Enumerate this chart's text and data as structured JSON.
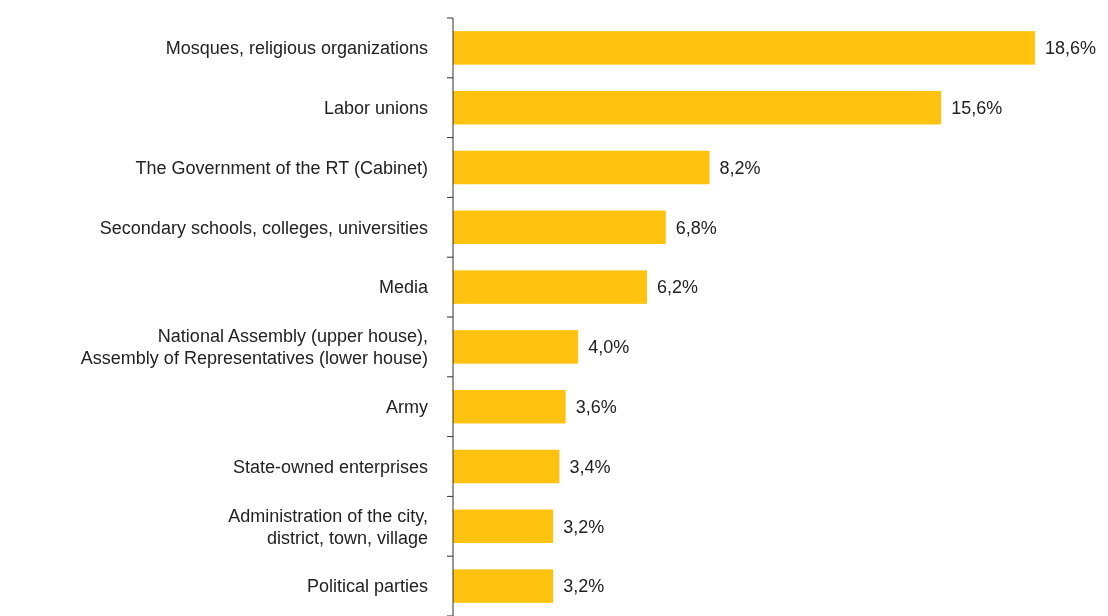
{
  "chart_data": {
    "type": "bar",
    "orientation": "horizontal",
    "categories": [
      "Mosques, religious organizations",
      "Labor unions",
      "The Government of the RT (Cabinet)",
      "Secondary schools, colleges, universities",
      "Media",
      "National Assembly (upper house),\nAssembly of Representatives (lower house)",
      "Army",
      "State-owned enterprises",
      "Administration of the city,\ndistrict, town, village",
      "Political parties"
    ],
    "values": [
      18.6,
      15.6,
      8.2,
      6.8,
      6.2,
      4.0,
      3.6,
      3.4,
      3.2,
      3.2
    ],
    "value_labels": [
      "18,6%",
      "15,6%",
      "8,2%",
      "6,8%",
      "6,2%",
      "4,0%",
      "3,6%",
      "3,4%",
      "3,2%",
      "3,2%"
    ],
    "color": "#ffc20e"
  }
}
